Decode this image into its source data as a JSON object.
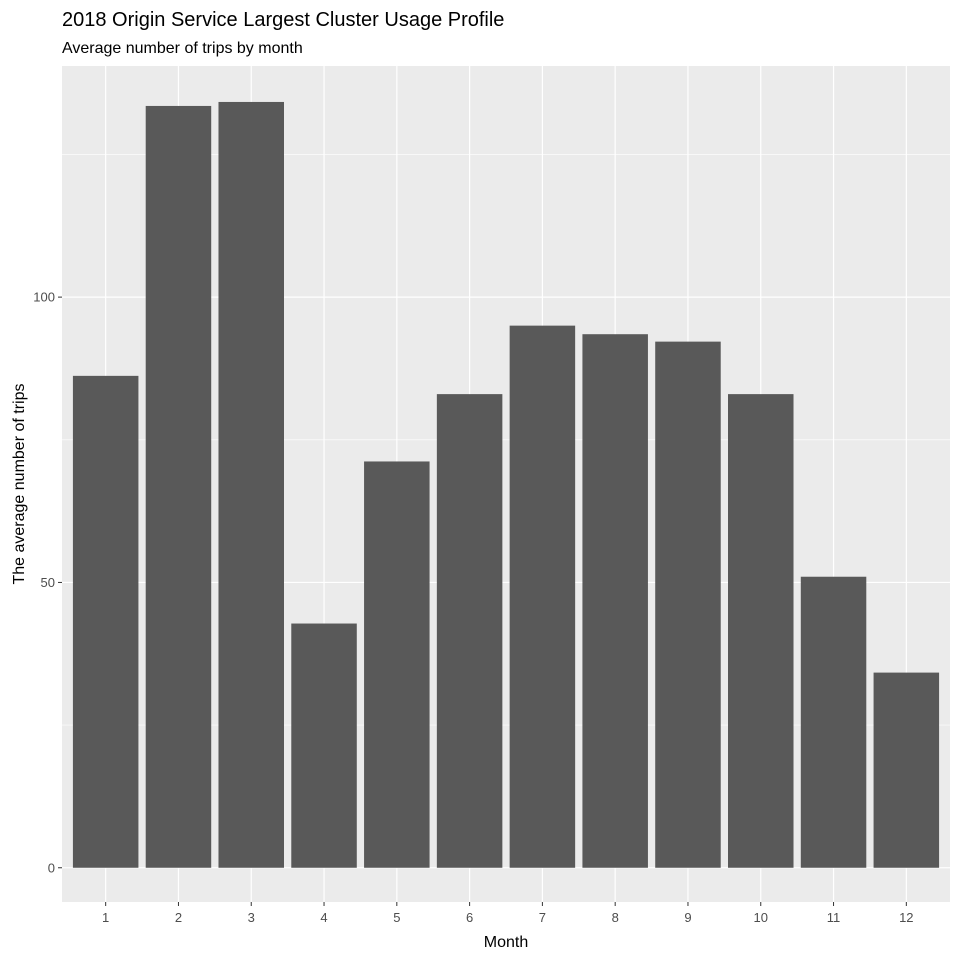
{
  "chart_data": {
    "type": "bar",
    "title": "2018 Origin Service Largest Cluster Usage Profile",
    "subtitle": "Average number of trips by month",
    "xlabel": "Month",
    "ylabel": "The average number of trips",
    "categories": [
      "1",
      "2",
      "3",
      "4",
      "5",
      "6",
      "7",
      "8",
      "9",
      "10",
      "11",
      "12"
    ],
    "values": [
      86.2,
      133.5,
      134.2,
      42.8,
      71.2,
      83,
      95,
      93.5,
      92.2,
      83,
      51,
      34.2
    ],
    "ylim": [
      -6,
      140.5
    ],
    "y_ticks": [
      0,
      50,
      100
    ],
    "y_tick_labels": [
      "0",
      "50",
      "100"
    ],
    "grid": true,
    "colors": {
      "panel_background": "#ebebeb",
      "grid_major": "#ffffff",
      "bar_fill": "#595959",
      "tick_text": "#4d4d4d"
    }
  }
}
